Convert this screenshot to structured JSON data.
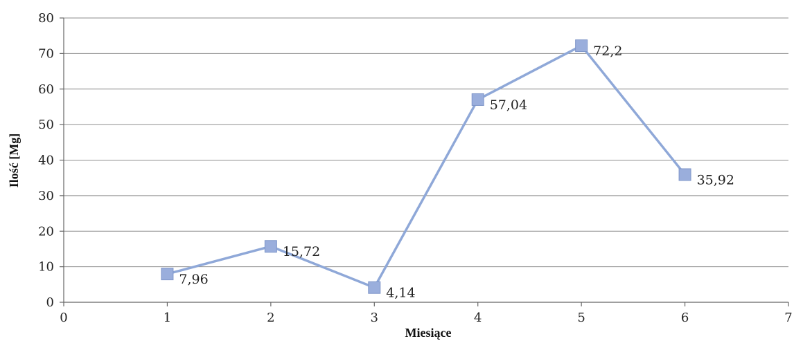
{
  "chart_data": {
    "type": "scatter",
    "title": "",
    "xlabel": "Miesiące",
    "ylabel": "Ilość [Mg]",
    "xlim": [
      0,
      7
    ],
    "ylim": [
      0,
      80
    ],
    "x_ticks": [
      0,
      1,
      2,
      3,
      4,
      5,
      6,
      7
    ],
    "y_ticks": [
      0,
      10,
      20,
      30,
      40,
      50,
      60,
      70,
      80
    ],
    "grid": "horizontal",
    "legend": "none",
    "line_color": "#8fa8d8",
    "marker_color": "#9aaedc",
    "series": [
      {
        "x": [
          1,
          2,
          3,
          4,
          5,
          6
        ],
        "values": [
          7.96,
          15.72,
          4.14,
          57.04,
          72.2,
          35.92
        ],
        "labels": [
          "7,96",
          "15,72",
          "4,14",
          "57,04",
          "72,2",
          "35,92"
        ]
      }
    ]
  }
}
